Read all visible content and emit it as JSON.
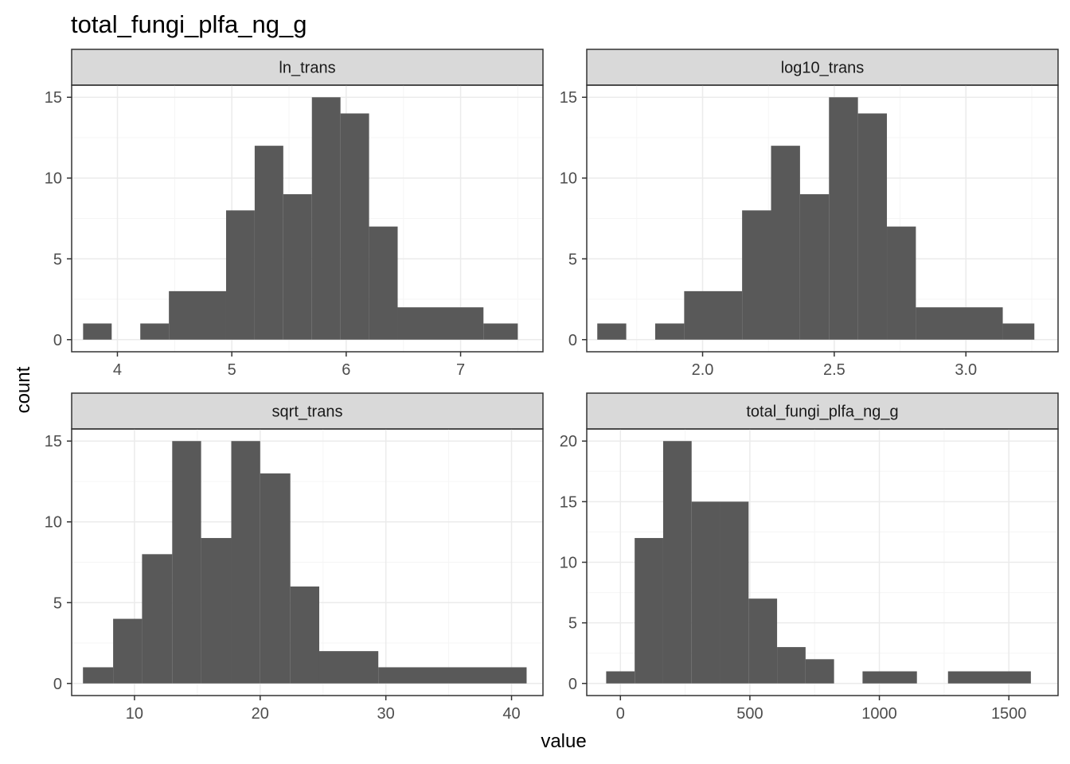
{
  "title": "total_fungi_plfa_ng_g",
  "xlabel": "value",
  "ylabel": "count",
  "colors": {
    "bar": "#595959",
    "strip": "#d9d9d9",
    "border": "#333333",
    "grid_major": "#ebebeb",
    "grid_minor": "#f5f5f5",
    "tick_text": "#4d4d4d"
  },
  "chart_data": [
    {
      "type": "bar",
      "facet": "ln_trans",
      "xlim": [
        3.6,
        7.72
      ],
      "ylim": [
        -0.75,
        15.75
      ],
      "xticks": [
        4,
        5,
        6,
        7
      ],
      "xtick_labels": [
        "4",
        "5",
        "6",
        "7"
      ],
      "yticks": [
        0,
        5,
        10,
        15
      ],
      "ytick_labels": [
        "0",
        "5",
        "10",
        "15"
      ],
      "bins": [
        [
          3.7,
          3.95,
          1
        ],
        [
          3.95,
          4.2,
          0
        ],
        [
          4.2,
          4.45,
          1
        ],
        [
          4.45,
          4.95,
          3
        ],
        [
          4.95,
          5.2,
          8
        ],
        [
          5.2,
          5.45,
          12
        ],
        [
          5.45,
          5.7,
          9
        ],
        [
          5.7,
          5.95,
          15
        ],
        [
          5.95,
          6.2,
          14
        ],
        [
          6.2,
          6.45,
          7
        ],
        [
          6.45,
          7.2,
          2
        ],
        [
          7.2,
          7.5,
          1
        ]
      ]
    },
    {
      "type": "bar",
      "facet": "log10_trans",
      "xlim": [
        1.56,
        3.35
      ],
      "ylim": [
        -0.75,
        15.75
      ],
      "xticks": [
        2.0,
        2.5,
        3.0
      ],
      "xtick_labels": [
        "2.0",
        "2.5",
        "3.0"
      ],
      "yticks": [
        0,
        5,
        10,
        15
      ],
      "ytick_labels": [
        "0",
        "5",
        "10",
        "15"
      ],
      "bins": [
        [
          1.6,
          1.71,
          1
        ],
        [
          1.71,
          1.82,
          0
        ],
        [
          1.82,
          1.93,
          1
        ],
        [
          1.93,
          2.15,
          3
        ],
        [
          2.15,
          2.26,
          8
        ],
        [
          2.26,
          2.37,
          12
        ],
        [
          2.37,
          2.48,
          9
        ],
        [
          2.48,
          2.59,
          15
        ],
        [
          2.59,
          2.7,
          14
        ],
        [
          2.7,
          2.81,
          7
        ],
        [
          2.81,
          3.14,
          2
        ],
        [
          3.14,
          3.26,
          1
        ]
      ]
    },
    {
      "type": "bar",
      "facet": "sqrt_trans",
      "xlim": [
        5.0,
        42.5
      ],
      "ylim": [
        -0.75,
        15.75
      ],
      "xticks": [
        10,
        20,
        30,
        40
      ],
      "xtick_labels": [
        "10",
        "20",
        "30",
        "40"
      ],
      "yticks": [
        0,
        5,
        10,
        15
      ],
      "ytick_labels": [
        "0",
        "5",
        "10",
        "15"
      ],
      "bins": [
        [
          5.9,
          8.3,
          1
        ],
        [
          8.3,
          10.6,
          4
        ],
        [
          10.6,
          13.0,
          8
        ],
        [
          13.0,
          15.3,
          15
        ],
        [
          15.3,
          17.7,
          9
        ],
        [
          17.7,
          20.0,
          15
        ],
        [
          20.0,
          22.4,
          13
        ],
        [
          22.4,
          24.7,
          6
        ],
        [
          24.7,
          29.4,
          2
        ],
        [
          29.4,
          41.2,
          1
        ]
      ]
    },
    {
      "type": "bar",
      "facet": "total_fungi_plfa_ng_g",
      "xlim": [
        -130,
        1690
      ],
      "ylim": [
        -1.0,
        21.0
      ],
      "xticks": [
        0,
        500,
        1000,
        1500
      ],
      "xtick_labels": [
        "0",
        "500",
        "1000",
        "1500"
      ],
      "yticks": [
        0,
        5,
        10,
        15,
        20
      ],
      "ytick_labels": [
        "0",
        "5",
        "10",
        "15",
        "20"
      ],
      "bins": [
        [
          -55,
          55,
          1
        ],
        [
          55,
          165,
          12
        ],
        [
          165,
          275,
          20
        ],
        [
          275,
          385,
          15
        ],
        [
          385,
          495,
          15
        ],
        [
          495,
          605,
          7
        ],
        [
          605,
          715,
          3
        ],
        [
          715,
          825,
          2
        ],
        [
          935,
          1145,
          1
        ],
        [
          1265,
          1585,
          1
        ]
      ]
    }
  ]
}
